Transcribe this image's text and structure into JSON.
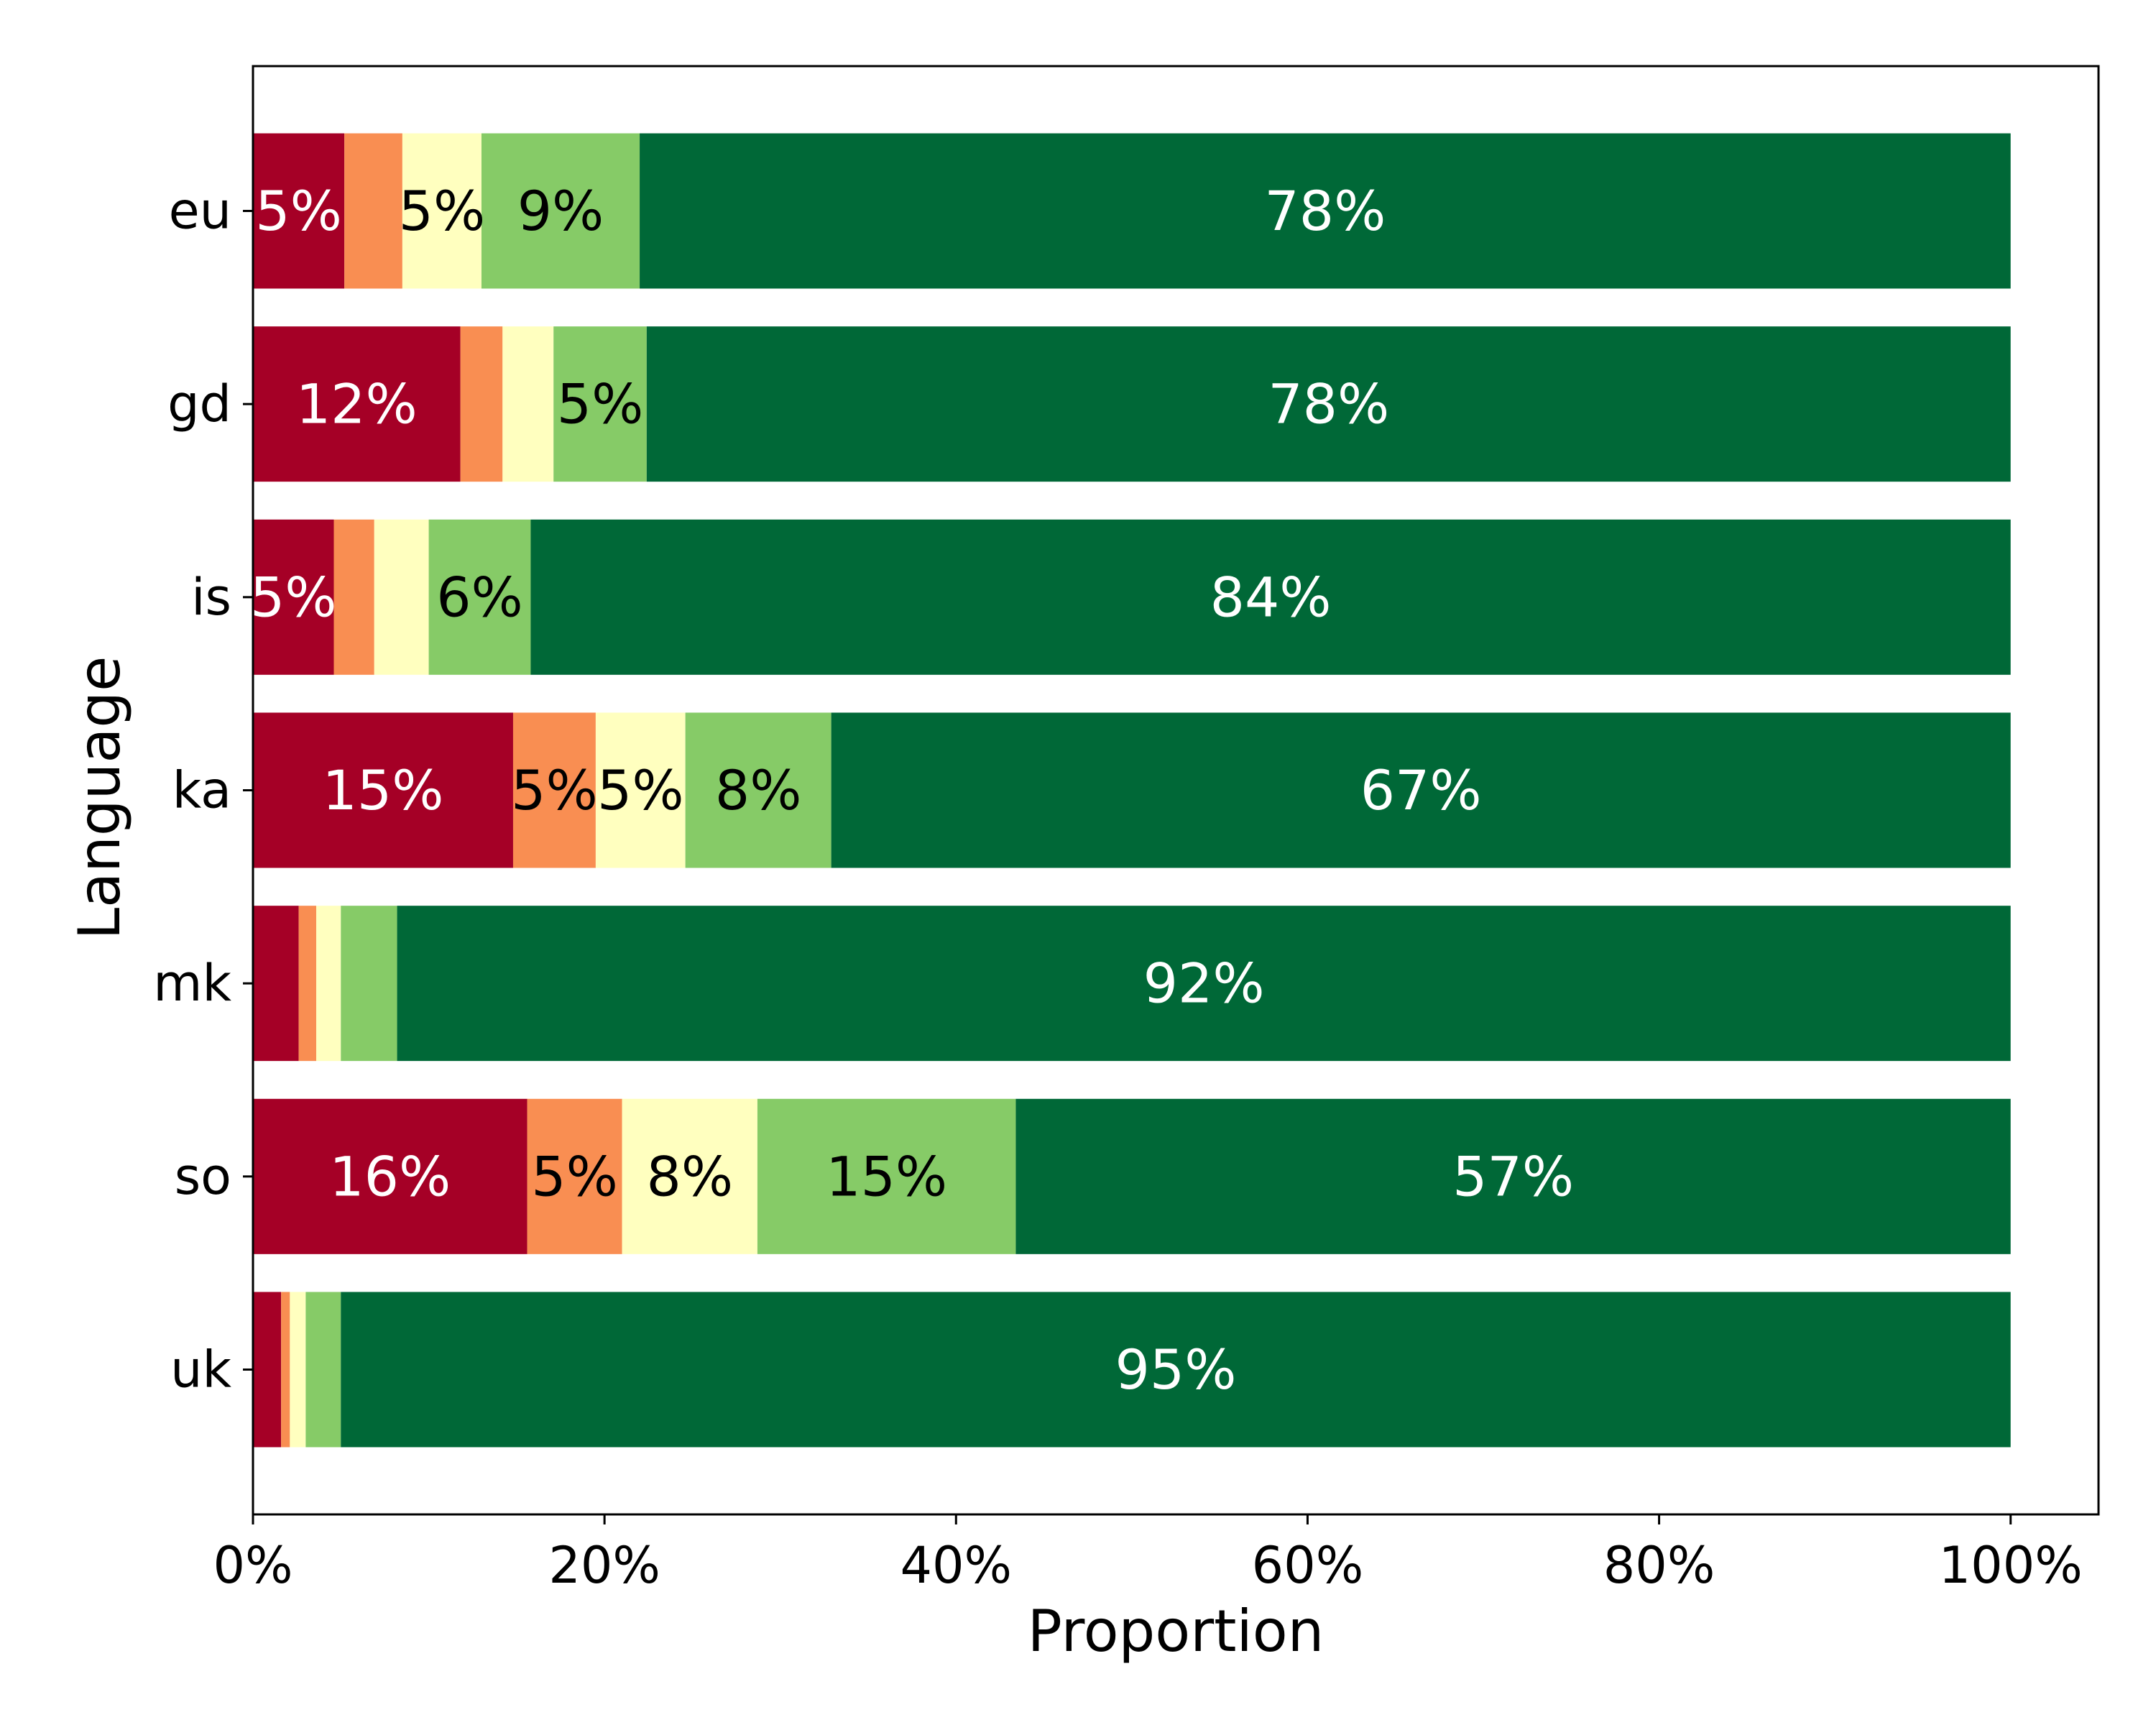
{
  "chart_data": {
    "type": "bar",
    "orientation": "horizontal",
    "stacked": true,
    "xlabel": "Proportion",
    "ylabel": "Language",
    "xlim": [
      0,
      105
    ],
    "x_ticks": [
      "0%",
      "20%",
      "40%",
      "60%",
      "80%",
      "100%"
    ],
    "x_tick_values": [
      0,
      20,
      40,
      60,
      80,
      100
    ],
    "grid": false,
    "legend": "none",
    "categories": [
      "eu",
      "gd",
      "is",
      "ka",
      "mk",
      "so",
      "uk"
    ],
    "series": [
      {
        "color": "#a50026",
        "label_color": "#ffffff",
        "values": [
          5.2,
          11.8,
          4.6,
          14.8,
          2.6,
          15.6,
          1.6
        ],
        "labels": [
          "5%",
          "12%",
          "5%",
          "15%",
          "",
          "16%",
          ""
        ]
      },
      {
        "color": "#f98e52",
        "label_color": "#000000",
        "values": [
          3.3,
          2.4,
          2.3,
          4.7,
          1.0,
          5.4,
          0.5
        ],
        "labels": [
          "",
          "",
          "",
          "5%",
          "",
          "5%",
          ""
        ]
      },
      {
        "color": "#ffffbf",
        "label_color": "#000000",
        "values": [
          4.5,
          2.9,
          3.1,
          5.1,
          1.4,
          7.7,
          0.9
        ],
        "labels": [
          "5%",
          "",
          "",
          "5%",
          "",
          "8%",
          ""
        ]
      },
      {
        "color": "#86cb67",
        "label_color": "#000000",
        "values": [
          9.0,
          5.3,
          5.8,
          8.3,
          3.2,
          14.7,
          2.0
        ],
        "labels": [
          "9%",
          "5%",
          "6%",
          "8%",
          "",
          "15%",
          ""
        ]
      },
      {
        "color": "#006837",
        "label_color": "#ffffff",
        "values": [
          78.0,
          77.6,
          84.2,
          67.1,
          91.8,
          56.6,
          95.0
        ],
        "labels": [
          "78%",
          "78%",
          "84%",
          "67%",
          "92%",
          "57%",
          "95%"
        ]
      }
    ]
  }
}
